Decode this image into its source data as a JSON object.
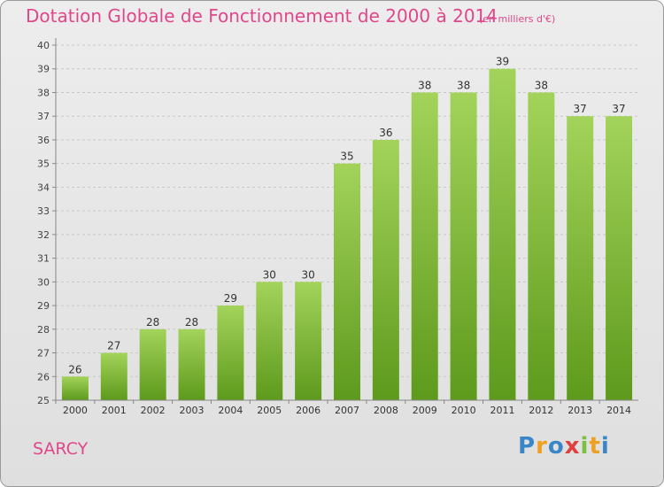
{
  "chart_data": {
    "type": "bar",
    "title": "Dotation Globale de Fonctionnement de 2000 à 2014",
    "subtitle": "(en milliers d'€)",
    "categories": [
      "2000",
      "2001",
      "2002",
      "2003",
      "2004",
      "2005",
      "2006",
      "2007",
      "2008",
      "2009",
      "2010",
      "2011",
      "2012",
      "2013",
      "2014"
    ],
    "values": [
      26,
      27,
      28,
      28,
      29,
      30,
      30,
      35,
      36,
      38,
      38,
      39,
      38,
      37,
      37
    ],
    "ylim": [
      25,
      40
    ],
    "yticks": [
      25,
      26,
      27,
      28,
      29,
      30,
      31,
      32,
      33,
      34,
      35,
      36,
      37,
      38,
      39,
      40
    ],
    "grid": true,
    "colors": {
      "bar_light": "#a3d35a",
      "bar_dark": "#5d9a1c",
      "text": "#e0478a"
    }
  },
  "commune": "SARCY",
  "logo": "Proxiti"
}
